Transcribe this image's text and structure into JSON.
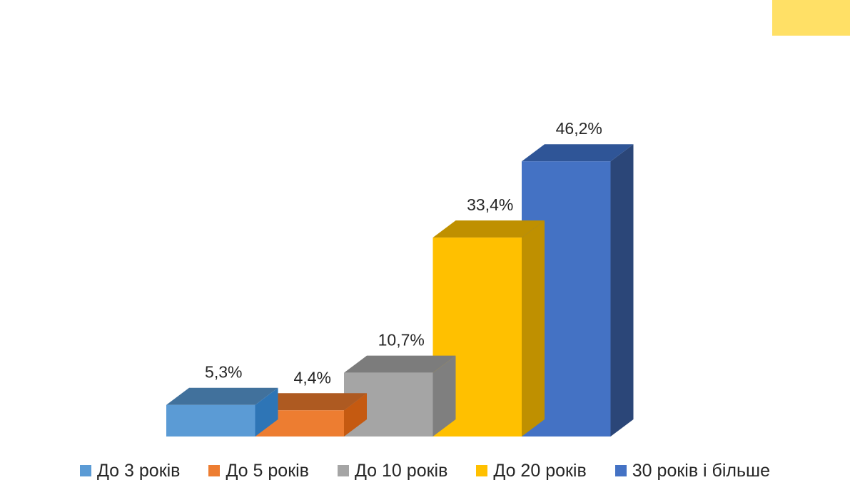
{
  "decor": {
    "corner_color": "#FFE066"
  },
  "chart_data": {
    "type": "bar",
    "style": "3d-column",
    "categories": [
      "До 3 років",
      "До 5 років",
      "До 10 років",
      "До 20 років",
      "30 років і більше"
    ],
    "values": [
      5.3,
      4.4,
      10.7,
      33.4,
      46.2
    ],
    "value_labels": [
      "5,3%",
      "4,4%",
      "10,7%",
      "33,4%",
      "46,2%"
    ],
    "unit": "%",
    "ylim": [
      0,
      50
    ],
    "grid": false,
    "axes_visible": false,
    "legend": {
      "position": "bottom",
      "entries": [
        "До 3 років",
        "До 5 років",
        "До 10 років",
        "До 20 років",
        "30 років і більше"
      ]
    },
    "colors": {
      "front": [
        "#5B9BD5",
        "#ED7D31",
        "#A5A5A5",
        "#FFC000",
        "#4472C4"
      ],
      "top": [
        "#41719C",
        "#AE5A21",
        "#7C7C7C",
        "#BF9000",
        "#2F5597"
      ],
      "side": [
        "#2E75B6",
        "#C55A11",
        "#7F7F7F",
        "#BF9000",
        "#2B4678"
      ]
    },
    "legend_colors": [
      "#5B9BD5",
      "#ED7D31",
      "#A5A5A5",
      "#FFC000",
      "#4472C4"
    ]
  }
}
